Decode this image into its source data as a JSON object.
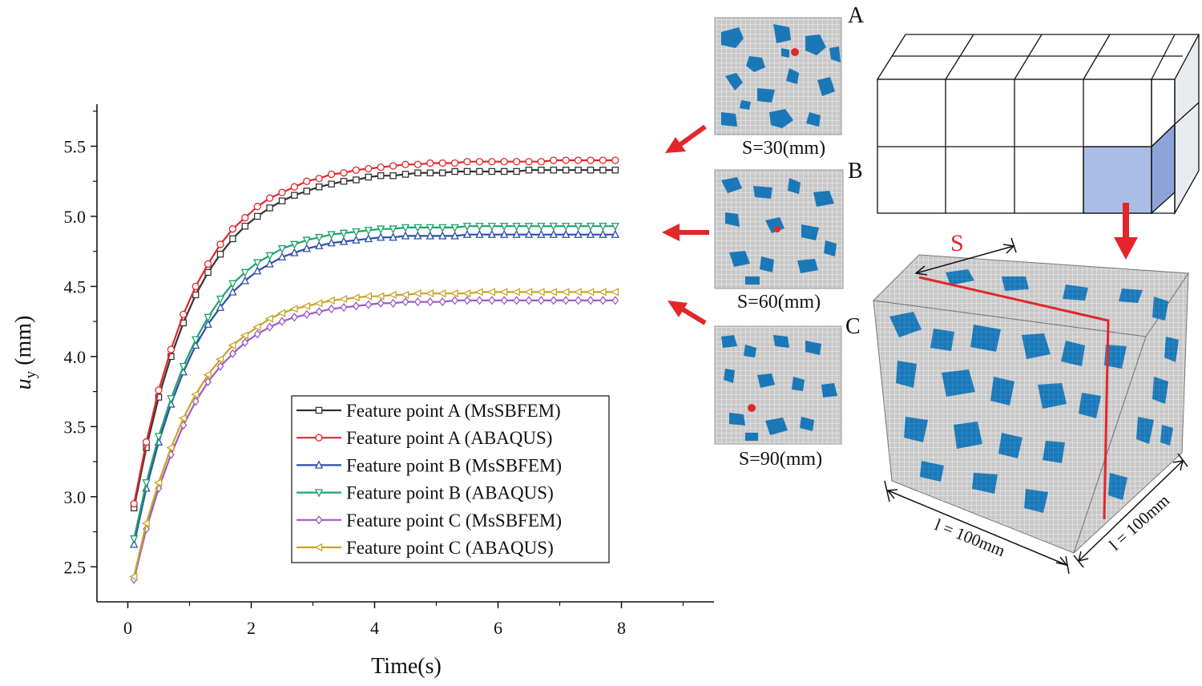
{
  "chart_data": {
    "type": "line",
    "xlabel": "Time(s)",
    "ylabel_main": "u",
    "ylabel_sub": "y",
    "ylabel_unit": " (mm)",
    "xlim": [
      -0.5,
      9.5
    ],
    "ylim": [
      2.25,
      5.8
    ],
    "xticks": [
      0,
      2,
      4,
      6,
      8
    ],
    "yticks": [
      2.5,
      3.0,
      3.5,
      4.0,
      4.5,
      5.0,
      5.5
    ],
    "x": [
      0.1,
      0.3,
      0.5,
      0.7,
      0.9,
      1.1,
      1.3,
      1.5,
      1.7,
      1.9,
      2.1,
      2.3,
      2.5,
      2.7,
      2.9,
      3.1,
      3.3,
      3.5,
      3.7,
      3.9,
      4.1,
      4.3,
      4.5,
      4.7,
      4.9,
      5.1,
      5.3,
      5.5,
      5.7,
      5.9,
      6.1,
      6.3,
      6.5,
      6.7,
      6.9,
      7.1,
      7.3,
      7.5,
      7.7,
      7.9
    ],
    "series": [
      {
        "name": "Feature point A (MsSBFEM)",
        "color": "#333333",
        "marker": "square",
        "values": [
          2.92,
          3.35,
          3.71,
          4.0,
          4.24,
          4.44,
          4.6,
          4.73,
          4.84,
          4.93,
          5.0,
          5.06,
          5.11,
          5.15,
          5.18,
          5.21,
          5.23,
          5.25,
          5.26,
          5.28,
          5.29,
          5.29,
          5.3,
          5.31,
          5.31,
          5.31,
          5.32,
          5.32,
          5.32,
          5.32,
          5.32,
          5.32,
          5.33,
          5.33,
          5.33,
          5.33,
          5.33,
          5.33,
          5.33,
          5.33
        ]
      },
      {
        "name": "Feature point A (ABAQUS)",
        "color": "#e3262a",
        "marker": "circle",
        "values": [
          2.95,
          3.39,
          3.76,
          4.05,
          4.3,
          4.5,
          4.66,
          4.8,
          4.91,
          4.99,
          5.07,
          5.13,
          5.17,
          5.21,
          5.25,
          5.27,
          5.3,
          5.31,
          5.33,
          5.34,
          5.35,
          5.36,
          5.37,
          5.37,
          5.38,
          5.38,
          5.38,
          5.39,
          5.39,
          5.39,
          5.39,
          5.39,
          5.39,
          5.39,
          5.4,
          5.4,
          5.4,
          5.4,
          5.4,
          5.4
        ]
      },
      {
        "name": "Feature point B (MsSBFEM)",
        "color": "#2b4fa8",
        "marker": "triangle-up",
        "values": [
          2.66,
          3.06,
          3.39,
          3.66,
          3.89,
          4.08,
          4.23,
          4.35,
          4.46,
          4.54,
          4.61,
          4.66,
          4.71,
          4.74,
          4.77,
          4.79,
          4.81,
          4.82,
          4.83,
          4.84,
          4.85,
          4.85,
          4.86,
          4.86,
          4.86,
          4.86,
          4.86,
          4.87,
          4.87,
          4.87,
          4.87,
          4.87,
          4.87,
          4.87,
          4.87,
          4.87,
          4.87,
          4.87,
          4.87,
          4.87
        ]
      },
      {
        "name": "Feature point B (ABAQUS)",
        "color": "#1fa36b",
        "marker": "triangle-down",
        "values": [
          2.7,
          3.1,
          3.43,
          3.7,
          3.93,
          4.12,
          4.28,
          4.41,
          4.52,
          4.6,
          4.67,
          4.72,
          4.77,
          4.8,
          4.83,
          4.85,
          4.87,
          4.88,
          4.89,
          4.9,
          4.91,
          4.91,
          4.92,
          4.92,
          4.92,
          4.92,
          4.92,
          4.93,
          4.93,
          4.93,
          4.93,
          4.93,
          4.93,
          4.93,
          4.93,
          4.93,
          4.93,
          4.93,
          4.93,
          4.93
        ]
      },
      {
        "name": "Feature point C (MsSBFEM)",
        "color": "#9b59c9",
        "marker": "diamond",
        "values": [
          2.41,
          2.77,
          3.06,
          3.3,
          3.51,
          3.68,
          3.82,
          3.93,
          4.02,
          4.1,
          4.16,
          4.21,
          4.25,
          4.28,
          4.3,
          4.32,
          4.34,
          4.35,
          4.36,
          4.37,
          4.38,
          4.38,
          4.39,
          4.39,
          4.39,
          4.39,
          4.4,
          4.4,
          4.4,
          4.4,
          4.4,
          4.4,
          4.4,
          4.4,
          4.4,
          4.4,
          4.4,
          4.4,
          4.4,
          4.4
        ]
      },
      {
        "name": "Feature point C (ABAQUS)",
        "color": "#c9a227",
        "marker": "triangle-left",
        "values": [
          2.43,
          2.81,
          3.1,
          3.35,
          3.56,
          3.73,
          3.87,
          3.98,
          4.08,
          4.15,
          4.21,
          4.27,
          4.31,
          4.34,
          4.36,
          4.38,
          4.4,
          4.41,
          4.42,
          4.43,
          4.43,
          4.44,
          4.44,
          4.45,
          4.45,
          4.45,
          4.45,
          4.45,
          4.46,
          4.46,
          4.46,
          4.46,
          4.46,
          4.46,
          4.46,
          4.46,
          4.46,
          4.46,
          4.46,
          4.46
        ]
      }
    ],
    "legend_position": "lower-center",
    "grid": false
  },
  "panels": [
    {
      "letter": "A",
      "caption": "S=30(mm)"
    },
    {
      "letter": "B",
      "caption": "S=60(mm)"
    },
    {
      "letter": "C",
      "caption": "S=90(mm)"
    }
  ],
  "cube": {
    "cut_label": "S",
    "dim_front": "l = 100mm",
    "dim_side": "l = 100mm"
  },
  "colors": {
    "aggregate": "#1a78b8",
    "mortar": "#c8c8c8",
    "highlight_cell": "#a9bde6",
    "arrow": "#e3262a"
  }
}
